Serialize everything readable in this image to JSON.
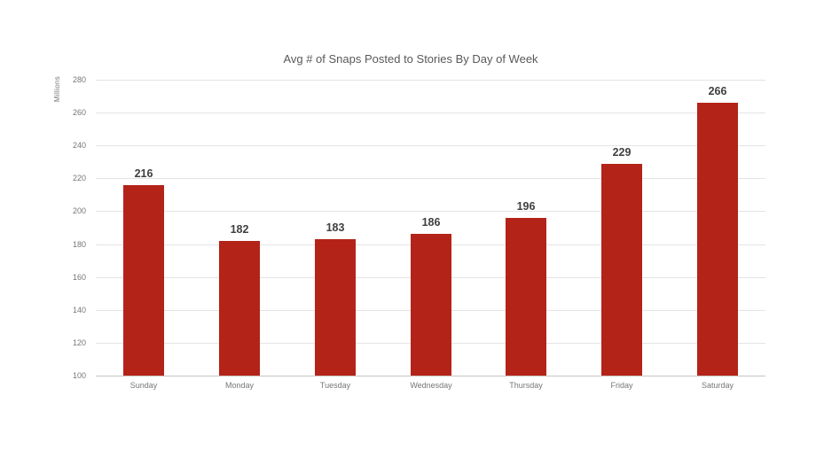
{
  "chart_data": {
    "type": "bar",
    "title": "Avg # of Snaps Posted to Stories By Day of Week",
    "xlabel": "",
    "ylabel": "Millions",
    "categories": [
      "Sunday",
      "Monday",
      "Tuesday",
      "Wednesday",
      "Thursday",
      "Friday",
      "Saturday"
    ],
    "values": [
      216,
      182,
      183,
      186,
      196,
      229,
      266
    ],
    "ylim": [
      100,
      280
    ],
    "ytick_interval": 20,
    "yticks": [
      280,
      260,
      240,
      220,
      200,
      180,
      160,
      140,
      120,
      100
    ],
    "grid": "horizontal",
    "legend": "none",
    "data_labels": true
  },
  "colors": {
    "bar": "#b42318",
    "title_text": "#595959",
    "data_label_text": "#404040",
    "axis_tick_text": "#767676",
    "gridline": "#e4e4e4",
    "axis_line": "#c6c6c6",
    "background": "#ffffff"
  }
}
